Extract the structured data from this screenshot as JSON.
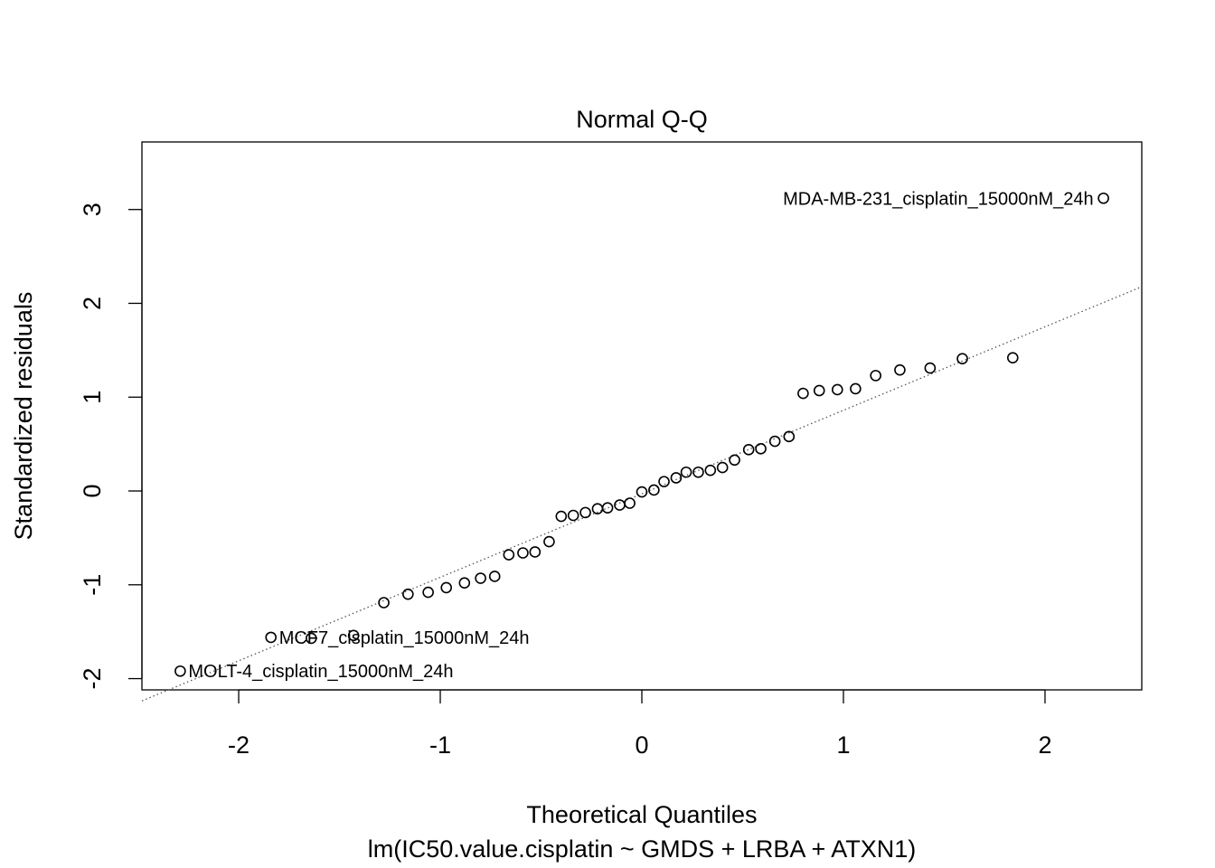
{
  "chart_data": {
    "type": "scatter",
    "title": "Normal Q-Q",
    "xlabel": "Theoretical Quantiles",
    "ylabel": "Standardized residuals",
    "subtitle": "lm(IC50.value.cisplatin ~ GMDS + LRBA + ATXN1)",
    "xlim": [
      -2.48,
      2.48
    ],
    "ylim": [
      -2.12,
      3.72
    ],
    "x_ticks": [
      -2,
      -1,
      0,
      1,
      2
    ],
    "y_ticks": [
      -2,
      -1,
      0,
      1,
      2,
      3
    ],
    "reference_line": {
      "slope": 0.89,
      "intercept": -0.03,
      "style": "dotted"
    },
    "points": [
      {
        "x": -2.29,
        "y": -1.92
      },
      {
        "x": -1.84,
        "y": -1.56
      },
      {
        "x": -1.64,
        "y": -1.57
      },
      {
        "x": -1.43,
        "y": -1.54
      },
      {
        "x": -1.28,
        "y": -1.19
      },
      {
        "x": -1.16,
        "y": -1.1
      },
      {
        "x": -1.06,
        "y": -1.08
      },
      {
        "x": -0.97,
        "y": -1.03
      },
      {
        "x": -0.88,
        "y": -0.98
      },
      {
        "x": -0.8,
        "y": -0.93
      },
      {
        "x": -0.73,
        "y": -0.91
      },
      {
        "x": -0.66,
        "y": -0.68
      },
      {
        "x": -0.59,
        "y": -0.66
      },
      {
        "x": -0.53,
        "y": -0.65
      },
      {
        "x": -0.46,
        "y": -0.54
      },
      {
        "x": -0.4,
        "y": -0.27
      },
      {
        "x": -0.34,
        "y": -0.26
      },
      {
        "x": -0.28,
        "y": -0.23
      },
      {
        "x": -0.22,
        "y": -0.19
      },
      {
        "x": -0.17,
        "y": -0.18
      },
      {
        "x": -0.11,
        "y": -0.15
      },
      {
        "x": -0.06,
        "y": -0.13
      },
      {
        "x": 0.0,
        "y": -0.01
      },
      {
        "x": 0.06,
        "y": 0.01
      },
      {
        "x": 0.11,
        "y": 0.1
      },
      {
        "x": 0.17,
        "y": 0.14
      },
      {
        "x": 0.22,
        "y": 0.2
      },
      {
        "x": 0.28,
        "y": 0.2
      },
      {
        "x": 0.34,
        "y": 0.22
      },
      {
        "x": 0.4,
        "y": 0.25
      },
      {
        "x": 0.46,
        "y": 0.33
      },
      {
        "x": 0.53,
        "y": 0.44
      },
      {
        "x": 0.59,
        "y": 0.45
      },
      {
        "x": 0.66,
        "y": 0.53
      },
      {
        "x": 0.73,
        "y": 0.58
      },
      {
        "x": 0.8,
        "y": 1.04
      },
      {
        "x": 0.88,
        "y": 1.07
      },
      {
        "x": 0.97,
        "y": 1.08
      },
      {
        "x": 1.06,
        "y": 1.09
      },
      {
        "x": 1.16,
        "y": 1.23
      },
      {
        "x": 1.28,
        "y": 1.29
      },
      {
        "x": 1.43,
        "y": 1.31
      },
      {
        "x": 1.59,
        "y": 1.41
      },
      {
        "x": 1.84,
        "y": 1.42
      },
      {
        "x": 2.29,
        "y": 3.12
      }
    ],
    "labeled_points": [
      {
        "label": "MDA-MB-231_cisplatin_15000nM_24h",
        "x": 2.29,
        "y": 3.12,
        "side": "left"
      },
      {
        "label": "MCF7_cisplatin_15000nM_24h",
        "x": -1.84,
        "y": -1.56,
        "side": "right"
      },
      {
        "label": "MOLT-4_cisplatin_15000nM_24h",
        "x": -2.29,
        "y": -1.92,
        "side": "right"
      }
    ]
  }
}
